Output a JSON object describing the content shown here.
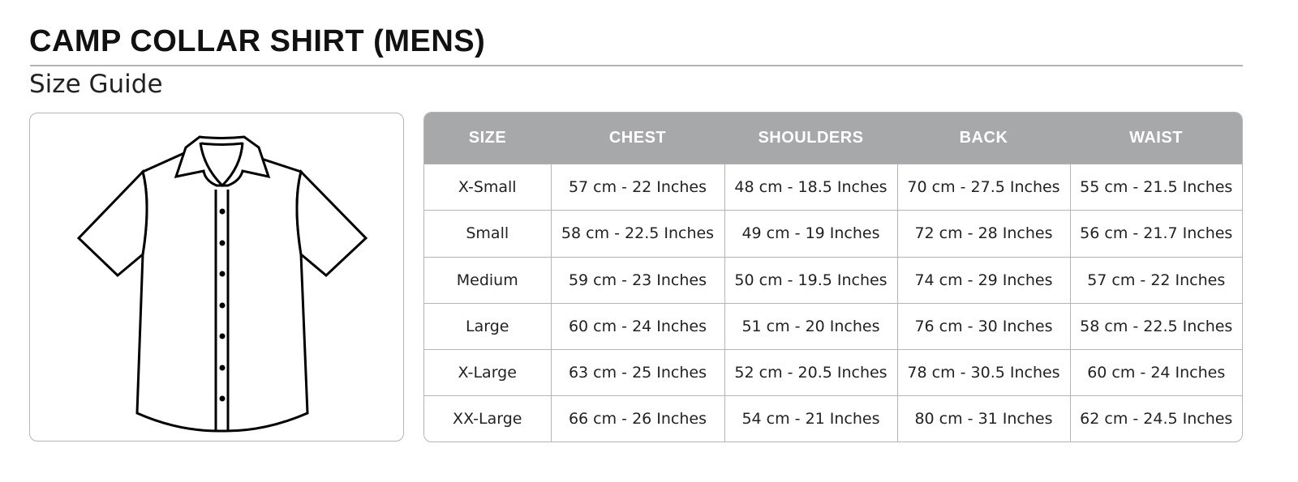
{
  "header": {
    "title": "CAMP COLLAR SHIRT (MENS)",
    "subtitle": "Size Guide"
  },
  "colors": {
    "table_header_bg": "#a7a8aa",
    "border": "#b5b5b5"
  },
  "illustration": {
    "icon": "camp-collar-shirt-outline",
    "buttons": 7
  },
  "table": {
    "columns": [
      "SIZE",
      "CHEST",
      "SHOULDERS",
      "BACK",
      "WAIST"
    ],
    "rows": [
      [
        "X-Small",
        "57 cm - 22 Inches",
        "48 cm - 18.5 Inches",
        "70 cm - 27.5 Inches",
        "55 cm - 21.5 Inches"
      ],
      [
        "Small",
        "58 cm - 22.5 Inches",
        "49 cm - 19 Inches",
        "72 cm - 28 Inches",
        "56 cm - 21.7 Inches"
      ],
      [
        "Medium",
        "59 cm - 23 Inches",
        "50 cm - 19.5 Inches",
        "74 cm - 29 Inches",
        "57 cm - 22 Inches"
      ],
      [
        "Large",
        "60 cm - 24 Inches",
        "51 cm - 20 Inches",
        "76 cm - 30 Inches",
        "58 cm - 22.5 Inches"
      ],
      [
        "X-Large",
        "63 cm - 25 Inches",
        "52 cm - 20.5 Inches",
        "78 cm - 30.5 Inches",
        "60 cm - 24 Inches"
      ],
      [
        "XX-Large",
        "66 cm - 26 Inches",
        "54 cm - 21 Inches",
        "80 cm - 31 Inches",
        "62 cm - 24.5 Inches"
      ]
    ]
  }
}
